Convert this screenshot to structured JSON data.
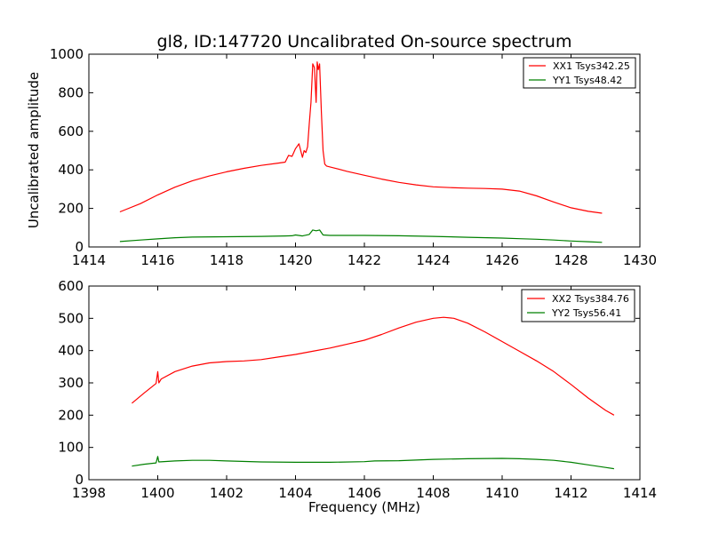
{
  "chart_data": [
    {
      "type": "line",
      "title": "gl8, ID:147720 Uncalibrated On-source spectrum",
      "xlabel": "",
      "ylabel": "Uncalibrated amplitude",
      "xlim": [
        1414,
        1430
      ],
      "ylim": [
        0,
        1000
      ],
      "xticks": [
        "1414",
        "1416",
        "1418",
        "1420",
        "1422",
        "1424",
        "1426",
        "1428",
        "1430"
      ],
      "yticks": [
        "0",
        "200",
        "400",
        "600",
        "800",
        "1000"
      ],
      "legend": "top-right",
      "series": [
        {
          "name": "XX1 Tsys342.25",
          "color": "#ff0000",
          "x": [
            1414.9,
            1415.5,
            1416.0,
            1416.5,
            1417.0,
            1417.5,
            1418.0,
            1418.5,
            1419.0,
            1419.5,
            1419.7,
            1419.8,
            1419.9,
            1420.0,
            1420.1,
            1420.2,
            1420.25,
            1420.3,
            1420.35,
            1420.4,
            1420.45,
            1420.5,
            1420.55,
            1420.6,
            1420.63,
            1420.66,
            1420.7,
            1420.75,
            1420.8,
            1420.85,
            1420.9,
            1421.0,
            1421.5,
            1422.0,
            1422.5,
            1423.0,
            1423.5,
            1424.0,
            1424.5,
            1425.0,
            1425.5,
            1426.0,
            1426.5,
            1427.0,
            1427.5,
            1428.0,
            1428.5,
            1428.9
          ],
          "values": [
            182,
            225,
            270,
            310,
            343,
            368,
            390,
            408,
            423,
            435,
            440,
            475,
            470,
            510,
            535,
            465,
            500,
            490,
            520,
            640,
            750,
            950,
            930,
            750,
            960,
            920,
            950,
            700,
            500,
            430,
            420,
            415,
            392,
            372,
            352,
            335,
            322,
            312,
            308,
            305,
            303,
            300,
            290,
            265,
            233,
            203,
            185,
            175
          ]
        },
        {
          "name": "YY1 Tsys48.42",
          "color": "#008000",
          "x": [
            1414.9,
            1415.5,
            1416.0,
            1416.5,
            1417.0,
            1418.0,
            1419.0,
            1419.7,
            1419.9,
            1420.0,
            1420.2,
            1420.4,
            1420.5,
            1420.6,
            1420.7,
            1420.8,
            1421.0,
            1422.0,
            1423.0,
            1424.0,
            1425.0,
            1426.0,
            1426.5,
            1427.0,
            1427.5,
            1428.0,
            1428.5,
            1428.9
          ],
          "values": [
            28,
            36,
            42,
            48,
            51,
            53,
            55,
            57,
            58,
            62,
            57,
            65,
            88,
            84,
            88,
            62,
            60,
            60,
            58,
            55,
            50,
            46,
            43,
            40,
            36,
            31,
            27,
            24
          ]
        }
      ]
    },
    {
      "type": "line",
      "title": "",
      "xlabel": "Frequency (MHz)",
      "ylabel": "",
      "xlim": [
        1398,
        1414
      ],
      "ylim": [
        0,
        600
      ],
      "xticks": [
        "1398",
        "1400",
        "1402",
        "1404",
        "1406",
        "1408",
        "1410",
        "1412",
        "1414"
      ],
      "yticks": [
        "0",
        "100",
        "200",
        "300",
        "400",
        "500",
        "600"
      ],
      "legend": "top-right",
      "series": [
        {
          "name": "XX2 Tsys384.76",
          "color": "#ff0000",
          "x": [
            1399.25,
            1399.6,
            1399.95,
            1400.0,
            1400.03,
            1400.1,
            1400.5,
            1401.0,
            1401.5,
            1402.0,
            1402.5,
            1403.0,
            1403.5,
            1404.0,
            1404.5,
            1405.0,
            1405.5,
            1406.0,
            1406.5,
            1407.0,
            1407.5,
            1408.0,
            1408.3,
            1408.6,
            1409.0,
            1409.5,
            1410.0,
            1410.5,
            1411.0,
            1411.5,
            1412.0,
            1412.5,
            1413.0,
            1413.25
          ],
          "values": [
            237,
            268,
            298,
            335,
            300,
            312,
            335,
            352,
            362,
            366,
            368,
            372,
            380,
            388,
            398,
            408,
            420,
            432,
            450,
            470,
            488,
            500,
            503,
            500,
            485,
            458,
            428,
            398,
            368,
            335,
            295,
            253,
            215,
            200
          ]
        },
        {
          "name": "YY2 Tsys56.41",
          "color": "#008000",
          "x": [
            1399.25,
            1399.6,
            1399.95,
            1400.0,
            1400.03,
            1400.5,
            1401.0,
            1401.5,
            1402.0,
            1403.0,
            1404.0,
            1405.0,
            1406.0,
            1406.3,
            1407.0,
            1408.0,
            1409.0,
            1410.0,
            1410.5,
            1411.0,
            1411.5,
            1412.0,
            1412.5,
            1413.0,
            1413.25
          ],
          "values": [
            42,
            48,
            52,
            72,
            55,
            58,
            60,
            60,
            58,
            55,
            54,
            54,
            56,
            58,
            59,
            63,
            65,
            66,
            65,
            63,
            60,
            54,
            46,
            38,
            34
          ]
        }
      ]
    }
  ]
}
